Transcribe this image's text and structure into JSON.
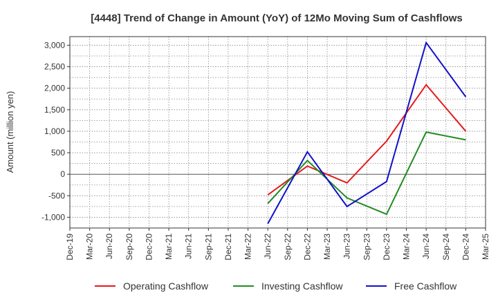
{
  "chart_data": {
    "type": "line",
    "title": "[4448]  Trend of Change in Amount (YoY) of 12Mo Moving Sum of Cashflows",
    "xlabel": "",
    "ylabel": "Amount (million yen)",
    "ylim": [
      -1250,
      3200
    ],
    "yticks": [
      -1000,
      -500,
      0,
      500,
      1000,
      1500,
      2000,
      2500,
      3000
    ],
    "ytick_labels": [
      "-1,000",
      "-500",
      "0",
      "500",
      "1,000",
      "1,500",
      "2,000",
      "2,500",
      "3,000"
    ],
    "categories": [
      "Dec-19",
      "Mar-20",
      "Jun-20",
      "Sep-20",
      "Dec-20",
      "Mar-21",
      "Jun-21",
      "Sep-21",
      "Dec-21",
      "Mar-22",
      "Jun-22",
      "Sep-22",
      "Dec-22",
      "Mar-23",
      "Jun-23",
      "Sep-23",
      "Dec-23",
      "Mar-24",
      "Jun-24",
      "Sep-24",
      "Dec-24",
      "Mar-25"
    ],
    "grid": true,
    "legend_position": "bottom",
    "series": [
      {
        "name": "Operating Cashflow",
        "color": "#e31a1c",
        "values": [
          null,
          null,
          null,
          null,
          null,
          null,
          null,
          null,
          null,
          null,
          -480,
          null,
          190,
          null,
          -200,
          null,
          770,
          null,
          2080,
          null,
          1000,
          null
        ]
      },
      {
        "name": "Investing Cashflow",
        "color": "#228b22",
        "values": [
          null,
          null,
          null,
          null,
          null,
          null,
          null,
          null,
          null,
          null,
          -680,
          null,
          320,
          null,
          -550,
          null,
          -930,
          null,
          980,
          null,
          800,
          null
        ]
      },
      {
        "name": "Free Cashflow",
        "color": "#1010c8",
        "values": [
          null,
          null,
          null,
          null,
          null,
          null,
          null,
          null,
          null,
          null,
          -1150,
          null,
          520,
          null,
          -750,
          null,
          -170,
          null,
          3060,
          null,
          1800,
          null
        ]
      }
    ]
  }
}
